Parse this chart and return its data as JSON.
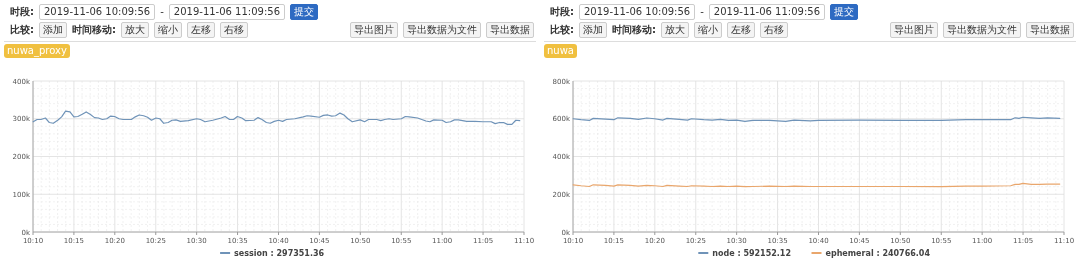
{
  "chart_data": [
    {
      "type": "line",
      "annotations": [
        "时段:",
        "2019-11-06 10:09:56",
        "-",
        "2019-11-06 11:09:56",
        "提交",
        "比较:",
        "添加",
        "时间移动:",
        "放大",
        "缩小",
        "左移",
        "右移",
        "导出图片",
        "导出数据为文件",
        "导出数据",
        "nuwa_proxy"
      ],
      "xlim": [
        10.1667,
        11.1667
      ],
      "xticks": [
        {
          "value": 10.1667,
          "label": "10:10"
        },
        {
          "value": 10.25,
          "label": "10:15"
        },
        {
          "value": 10.3333,
          "label": "10:20"
        },
        {
          "value": 10.4167,
          "label": "10:25"
        },
        {
          "value": 10.5,
          "label": "10:30"
        },
        {
          "value": 10.5833,
          "label": "10:35"
        },
        {
          "value": 10.6667,
          "label": "10:40"
        },
        {
          "value": 10.75,
          "label": "10:45"
        },
        {
          "value": 10.8333,
          "label": "10:50"
        },
        {
          "value": 10.9167,
          "label": "10:55"
        },
        {
          "value": 11.0,
          "label": "11:00"
        },
        {
          "value": 11.0833,
          "label": "11:05"
        },
        {
          "value": 11.1667,
          "label": "11:10"
        }
      ],
      "ylim": [
        0,
        400000
      ],
      "yticks": [
        {
          "value": 0,
          "label": "0k"
        },
        {
          "value": 100000,
          "label": "100k"
        },
        {
          "value": 200000,
          "label": "200k"
        },
        {
          "value": 300000,
          "label": "300k"
        },
        {
          "value": 400000,
          "label": "400k"
        }
      ],
      "grid": true,
      "legend": "bottom",
      "series": [
        {
          "name": "session : 297351.36",
          "color": "#6f93b8",
          "x": [
            10.167,
            10.175,
            10.183,
            10.192,
            10.2,
            10.208,
            10.217,
            10.225,
            10.233,
            10.242,
            10.25,
            10.258,
            10.267,
            10.275,
            10.283,
            10.292,
            10.3,
            10.308,
            10.317,
            10.325,
            10.333,
            10.342,
            10.35,
            10.367,
            10.375,
            10.383,
            10.392,
            10.4,
            10.408,
            10.417,
            10.425,
            10.433,
            10.442,
            10.45,
            10.458,
            10.467,
            10.483,
            10.5,
            10.508,
            10.517,
            10.533,
            10.55,
            10.558,
            10.567,
            10.575,
            10.583,
            10.592,
            10.6,
            10.617,
            10.625,
            10.633,
            10.642,
            10.65,
            10.658,
            10.667,
            10.675,
            10.683,
            10.7,
            10.717,
            10.725,
            10.733,
            10.75,
            10.758,
            10.767,
            10.775,
            10.783,
            10.792,
            10.8,
            10.808,
            10.817,
            10.833,
            10.842,
            10.85,
            10.867,
            10.875,
            10.883,
            10.892,
            10.9,
            10.917,
            10.925,
            10.933,
            10.95,
            10.967,
            10.975,
            10.983,
            11.0,
            11.008,
            11.017,
            11.025,
            11.033,
            11.05,
            11.067,
            11.083,
            11.1,
            11.108,
            11.117,
            11.125,
            11.133,
            11.142,
            11.15,
            11.158
          ],
          "values": [
            292000,
            298000,
            298000,
            302000,
            290000,
            288000,
            296000,
            305000,
            320000,
            318000,
            305000,
            306000,
            312000,
            318000,
            312000,
            303000,
            302000,
            298000,
            300000,
            307000,
            306000,
            300000,
            298000,
            298000,
            305000,
            310000,
            308000,
            304000,
            296000,
            302000,
            300000,
            288000,
            290000,
            296000,
            297000,
            293000,
            295000,
            300000,
            298000,
            292000,
            296000,
            302000,
            306000,
            298000,
            298000,
            306000,
            302000,
            295000,
            296000,
            303000,
            298000,
            290000,
            288000,
            293000,
            296000,
            293000,
            298000,
            300000,
            305000,
            308000,
            307000,
            304000,
            309000,
            310000,
            307000,
            308000,
            315000,
            310000,
            300000,
            292000,
            297000,
            292000,
            298000,
            298000,
            295000,
            298000,
            300000,
            298000,
            300000,
            306000,
            305000,
            302000,
            294000,
            292000,
            297000,
            296000,
            290000,
            292000,
            297000,
            297000,
            293000,
            293000,
            292000,
            292000,
            287000,
            290000,
            290000,
            285000,
            285000,
            296000,
            295000
          ]
        }
      ]
    },
    {
      "type": "line",
      "annotations": [
        "时段:",
        "2019-11-06 10:09:56",
        "-",
        "2019-11-06 11:09:56",
        "提交",
        "比较:",
        "添加",
        "时间移动:",
        "放大",
        "缩小",
        "左移",
        "右移",
        "导出图片",
        "导出数据为文件",
        "导出数据",
        "nuwa"
      ],
      "xlim": [
        10.1667,
        11.1667
      ],
      "xticks": [
        {
          "value": 10.1667,
          "label": "10:10"
        },
        {
          "value": 10.25,
          "label": "10:15"
        },
        {
          "value": 10.3333,
          "label": "10:20"
        },
        {
          "value": 10.4167,
          "label": "10:25"
        },
        {
          "value": 10.5,
          "label": "10:30"
        },
        {
          "value": 10.5833,
          "label": "10:35"
        },
        {
          "value": 10.6667,
          "label": "10:40"
        },
        {
          "value": 10.75,
          "label": "10:45"
        },
        {
          "value": 10.8333,
          "label": "10:50"
        },
        {
          "value": 10.9167,
          "label": "10:55"
        },
        {
          "value": 11.0,
          "label": "11:00"
        },
        {
          "value": 11.0833,
          "label": "11:05"
        },
        {
          "value": 11.1667,
          "label": "11:10"
        }
      ],
      "ylim": [
        0,
        800000
      ],
      "yticks": [
        {
          "value": 0,
          "label": "0k"
        },
        {
          "value": 200000,
          "label": "200k"
        },
        {
          "value": 400000,
          "label": "400k"
        },
        {
          "value": 600000,
          "label": "600k"
        },
        {
          "value": 800000,
          "label": "800k"
        }
      ],
      "grid": true,
      "legend": "bottom",
      "series": [
        {
          "name": "node : 592152.12",
          "color": "#6f93b8",
          "x": [
            10.167,
            10.183,
            10.2,
            10.208,
            10.233,
            10.25,
            10.258,
            10.283,
            10.3,
            10.317,
            10.333,
            10.35,
            10.358,
            10.383,
            10.4,
            10.408,
            10.433,
            10.45,
            10.467,
            10.483,
            10.5,
            10.517,
            10.533,
            10.567,
            10.6,
            10.617,
            10.65,
            10.667,
            10.75,
            10.833,
            10.917,
            10.967,
            11.0,
            11.058,
            11.067,
            11.075,
            11.083,
            11.1,
            11.117,
            11.133,
            11.158
          ],
          "values": [
            600000,
            595000,
            591000,
            602000,
            598000,
            595000,
            605000,
            602000,
            597000,
            604000,
            600000,
            593000,
            602000,
            597000,
            593000,
            600000,
            595000,
            593000,
            597000,
            591000,
            593000,
            586000,
            591000,
            591000,
            586000,
            593000,
            589000,
            591000,
            593000,
            591000,
            591000,
            595000,
            595000,
            595000,
            605000,
            602000,
            608000,
            605000,
            602000,
            605000,
            602000
          ]
        },
        {
          "name": "ephemeral : 240766.04",
          "color": "#e9a66c",
          "x": [
            10.167,
            10.183,
            10.2,
            10.208,
            10.233,
            10.25,
            10.258,
            10.283,
            10.3,
            10.317,
            10.333,
            10.35,
            10.358,
            10.383,
            10.4,
            10.408,
            10.433,
            10.45,
            10.467,
            10.483,
            10.5,
            10.517,
            10.533,
            10.567,
            10.6,
            10.617,
            10.65,
            10.667,
            10.75,
            10.833,
            10.917,
            10.967,
            11.0,
            11.058,
            11.067,
            11.075,
            11.083,
            11.1,
            11.117,
            11.133,
            11.158
          ],
          "values": [
            250000,
            245000,
            241000,
            250000,
            247000,
            243000,
            250000,
            247000,
            243000,
            247000,
            245000,
            241000,
            247000,
            243000,
            241000,
            245000,
            243000,
            241000,
            243000,
            241000,
            243000,
            240000,
            241000,
            243000,
            241000,
            243000,
            241000,
            241000,
            241000,
            241000,
            240000,
            243000,
            243000,
            245000,
            252000,
            252000,
            258000,
            252000,
            252000,
            254000,
            254000
          ]
        }
      ]
    }
  ]
}
